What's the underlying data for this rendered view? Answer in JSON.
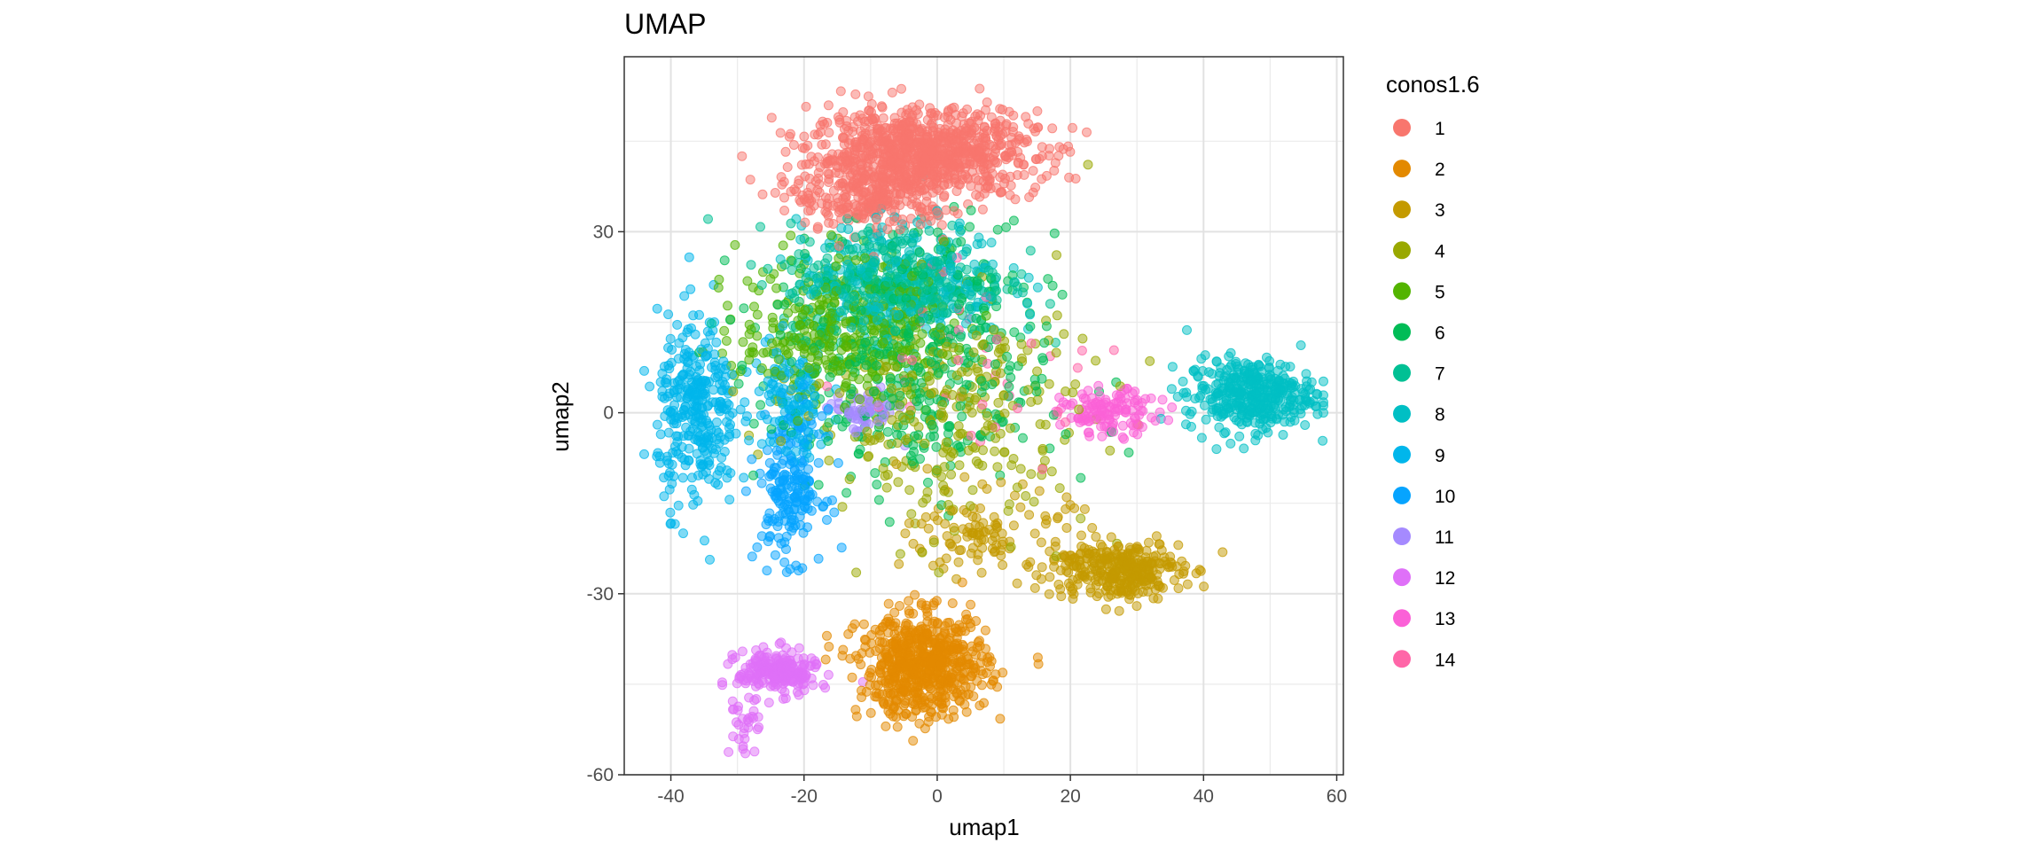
{
  "chart_data": {
    "type": "scatter",
    "title": "UMAP",
    "xlabel": "umap1",
    "ylabel": "umap2",
    "xlim": [
      -47,
      61
    ],
    "ylim": [
      -60,
      59
    ],
    "xticks": [
      -40,
      -20,
      0,
      20,
      40,
      60
    ],
    "yticks": [
      -60,
      -30,
      0,
      30
    ],
    "xtick_labels": [
      "-40",
      "-20",
      "0",
      "20",
      "40",
      "60"
    ],
    "ytick_labels": [
      "-60",
      "-30",
      "0",
      "30"
    ],
    "grid": true,
    "point_alpha": 0.5,
    "legend": {
      "title": "conos1.6",
      "position": "right"
    },
    "series": [
      {
        "name": "1",
        "color": "#F8766D",
        "clusters": [
          {
            "center": [
              -2,
              43
            ],
            "spread": [
              14,
              6
            ],
            "n": 900
          },
          {
            "center": [
              -10,
              36
            ],
            "spread": [
              10,
              5
            ],
            "n": 250
          }
        ]
      },
      {
        "name": "2",
        "color": "#E38900",
        "clusters": [
          {
            "center": [
              -2,
              -42
            ],
            "spread": [
              8,
              7
            ],
            "n": 650
          }
        ]
      },
      {
        "name": "3",
        "color": "#C49A00",
        "clusters": [
          {
            "center": [
              27,
              -26
            ],
            "spread": [
              8,
              4
            ],
            "n": 320
          },
          {
            "center": [
              8,
              -20
            ],
            "spread": [
              10,
              6
            ],
            "n": 120
          }
        ]
      },
      {
        "name": "4",
        "color": "#99A800",
        "clusters": [
          {
            "center": [
              2,
              0
            ],
            "spread": [
              18,
              16
            ],
            "n": 280
          }
        ]
      },
      {
        "name": "5",
        "color": "#53B400",
        "clusters": [
          {
            "center": [
              -14,
              14
            ],
            "spread": [
              13,
              10
            ],
            "n": 380
          }
        ]
      },
      {
        "name": "6",
        "color": "#00BC56",
        "clusters": [
          {
            "center": [
              -4,
              8
            ],
            "spread": [
              18,
              18
            ],
            "n": 420
          }
        ]
      },
      {
        "name": "7",
        "color": "#00C094",
        "clusters": [
          {
            "center": [
              -6,
              22
            ],
            "spread": [
              14,
              8
            ],
            "n": 300
          }
        ]
      },
      {
        "name": "8",
        "color": "#00BFC4",
        "clusters": [
          {
            "center": [
              47,
              3
            ],
            "spread": [
              8,
              5
            ],
            "n": 380
          },
          {
            "center": [
              -5,
              22
            ],
            "spread": [
              13,
              8
            ],
            "n": 300
          }
        ]
      },
      {
        "name": "9",
        "color": "#00B6EB",
        "clusters": [
          {
            "center": [
              -36,
              0
            ],
            "spread": [
              5,
              13
            ],
            "n": 320
          },
          {
            "center": [
              -22,
              2
            ],
            "spread": [
              5,
              8
            ],
            "n": 120
          }
        ]
      },
      {
        "name": "10",
        "color": "#06A4FF",
        "clusters": [
          {
            "center": [
              -22,
              -12
            ],
            "spread": [
              4,
              10
            ],
            "n": 200
          }
        ]
      },
      {
        "name": "11",
        "color": "#A58AFF",
        "clusters": [
          {
            "center": [
              -11,
              0
            ],
            "spread": [
              4,
              3
            ],
            "n": 60
          }
        ]
      },
      {
        "name": "12",
        "color": "#DF70F8",
        "clusters": [
          {
            "center": [
              -24,
              -43
            ],
            "spread": [
              5,
              3
            ],
            "n": 220
          },
          {
            "center": [
              -29,
              -52
            ],
            "spread": [
              2,
              4
            ],
            "n": 30
          }
        ]
      },
      {
        "name": "13",
        "color": "#FB61D7",
        "clusters": [
          {
            "center": [
              26,
              0
            ],
            "spread": [
              6,
              3
            ],
            "n": 130
          }
        ]
      },
      {
        "name": "14",
        "color": "#FF66A8",
        "clusters": [
          {
            "center": [
              8,
              10
            ],
            "spread": [
              16,
              14
            ],
            "n": 40
          }
        ]
      }
    ]
  }
}
